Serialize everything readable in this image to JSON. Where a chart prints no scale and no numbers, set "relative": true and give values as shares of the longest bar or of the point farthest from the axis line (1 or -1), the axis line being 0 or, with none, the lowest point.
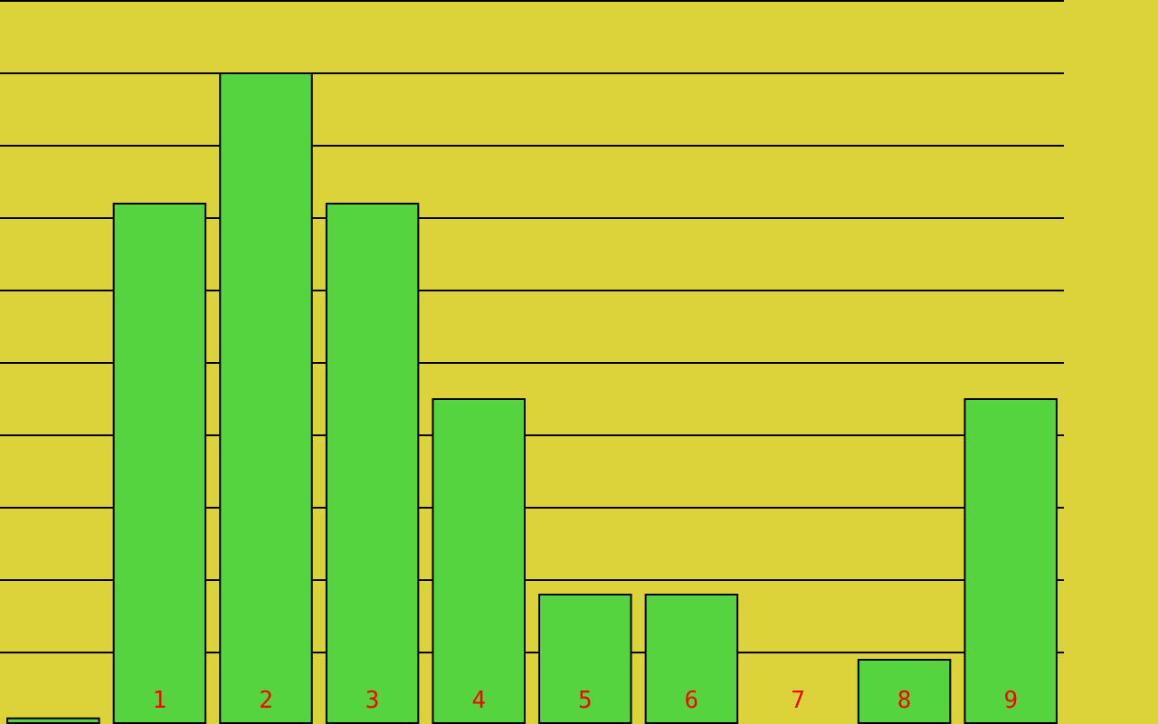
{
  "chart_data": {
    "type": "bar",
    "relative": true,
    "grid": "y",
    "categories": [
      null,
      "1",
      "2",
      "3",
      "4",
      "5",
      "6",
      "7",
      "8",
      "9"
    ],
    "values": [
      0.01,
      0.8,
      1,
      0.8,
      0.5,
      0.2,
      0.2,
      null,
      0.1,
      0.5
    ],
    "color": "#55d43f"
  }
}
